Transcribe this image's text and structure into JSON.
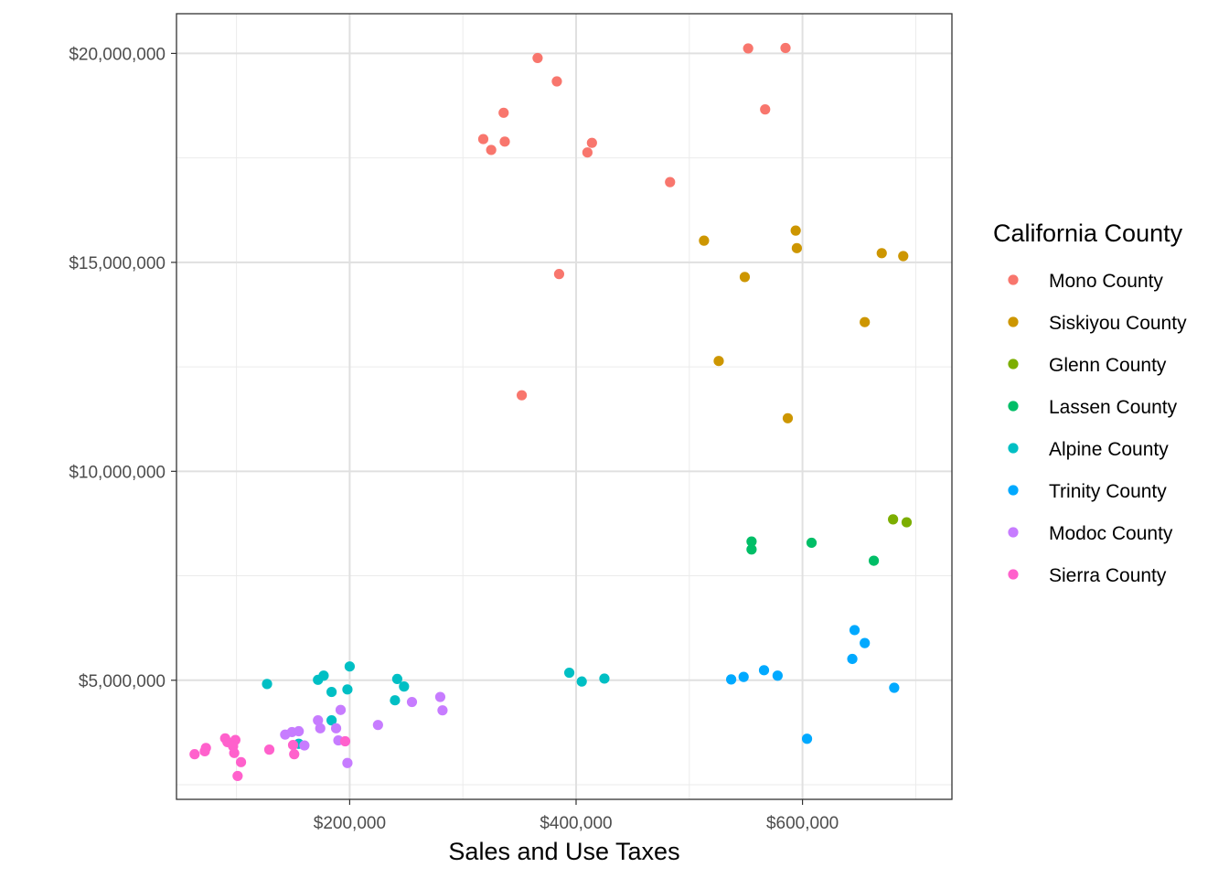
{
  "chart_data": {
    "type": "scatter",
    "xlabel": "Sales and Use Taxes",
    "ylabel": "",
    "title": "",
    "xlim": [
      47000,
      732000
    ],
    "ylim": [
      2150000,
      20950000
    ],
    "x_ticks": [
      200000,
      400000,
      600000
    ],
    "x_tick_labels": [
      "$200,000",
      "$400,000",
      "$600,000"
    ],
    "y_ticks": [
      5000000,
      10000000,
      15000000,
      20000000
    ],
    "y_tick_labels": [
      "$5,000,000",
      "$10,000,000",
      "$15,000,000",
      "$20,000,000"
    ],
    "grid": true,
    "theme": "bw",
    "legend": {
      "title": "California County",
      "position": "right"
    },
    "series": [
      {
        "name": "Mono County",
        "color": "#F8766D",
        "points": [
          [
            552000,
            20120000
          ],
          [
            585000,
            20130000
          ],
          [
            366000,
            19890000
          ],
          [
            383000,
            19330000
          ],
          [
            567000,
            18660000
          ],
          [
            336000,
            18580000
          ],
          [
            318000,
            17950000
          ],
          [
            337000,
            17890000
          ],
          [
            414000,
            17860000
          ],
          [
            325000,
            17690000
          ],
          [
            410000,
            17630000
          ],
          [
            483000,
            16920000
          ],
          [
            385000,
            14720000
          ],
          [
            352000,
            11820000
          ]
        ]
      },
      {
        "name": "Siskiyou County",
        "color": "#CD9600",
        "points": [
          [
            594000,
            15760000
          ],
          [
            513000,
            15520000
          ],
          [
            595000,
            15340000
          ],
          [
            670000,
            15220000
          ],
          [
            689000,
            15150000
          ],
          [
            549000,
            14650000
          ],
          [
            655000,
            13570000
          ],
          [
            526000,
            12640000
          ],
          [
            587000,
            11270000
          ]
        ]
      },
      {
        "name": "Glenn County",
        "color": "#7CAE00",
        "points": [
          [
            680000,
            8850000
          ],
          [
            692000,
            8780000
          ]
        ]
      },
      {
        "name": "Lassen County",
        "color": "#00BE67",
        "points": [
          [
            555000,
            8320000
          ],
          [
            608000,
            8290000
          ],
          [
            555000,
            8130000
          ],
          [
            663000,
            7860000
          ]
        ]
      },
      {
        "name": "Alpine County",
        "color": "#00BFC4",
        "points": [
          [
            200000,
            5330000
          ],
          [
            394000,
            5180000
          ],
          [
            177000,
            5110000
          ],
          [
            425000,
            5040000
          ],
          [
            242000,
            5030000
          ],
          [
            172000,
            5010000
          ],
          [
            405000,
            4970000
          ],
          [
            127000,
            4910000
          ],
          [
            248000,
            4850000
          ],
          [
            198000,
            4780000
          ],
          [
            184000,
            4720000
          ],
          [
            240000,
            4520000
          ],
          [
            184000,
            4040000
          ],
          [
            155000,
            3480000
          ]
        ]
      },
      {
        "name": "Trinity County",
        "color": "#00A9FF",
        "points": [
          [
            646000,
            6200000
          ],
          [
            655000,
            5890000
          ],
          [
            644000,
            5510000
          ],
          [
            566000,
            5240000
          ],
          [
            578000,
            5110000
          ],
          [
            548000,
            5080000
          ],
          [
            537000,
            5020000
          ],
          [
            681000,
            4820000
          ],
          [
            604000,
            3600000
          ]
        ]
      },
      {
        "name": "Modoc County",
        "color": "#C77CFF",
        "points": [
          [
            280000,
            4600000
          ],
          [
            255000,
            4480000
          ],
          [
            282000,
            4280000
          ],
          [
            192000,
            4290000
          ],
          [
            172000,
            4040000
          ],
          [
            225000,
            3930000
          ],
          [
            174000,
            3850000
          ],
          [
            188000,
            3850000
          ],
          [
            155000,
            3780000
          ],
          [
            149000,
            3760000
          ],
          [
            143000,
            3700000
          ],
          [
            190000,
            3560000
          ],
          [
            160000,
            3440000
          ],
          [
            198000,
            3020000
          ]
        ]
      },
      {
        "name": "Sierra County",
        "color": "#FF61CC",
        "points": [
          [
            90000,
            3610000
          ],
          [
            99000,
            3570000
          ],
          [
            92000,
            3520000
          ],
          [
            196000,
            3540000
          ],
          [
            150000,
            3450000
          ],
          [
            97000,
            3420000
          ],
          [
            73000,
            3380000
          ],
          [
            72000,
            3300000
          ],
          [
            129000,
            3340000
          ],
          [
            98000,
            3260000
          ],
          [
            63000,
            3230000
          ],
          [
            151000,
            3230000
          ],
          [
            104000,
            3040000
          ],
          [
            101000,
            2710000
          ]
        ]
      }
    ]
  }
}
